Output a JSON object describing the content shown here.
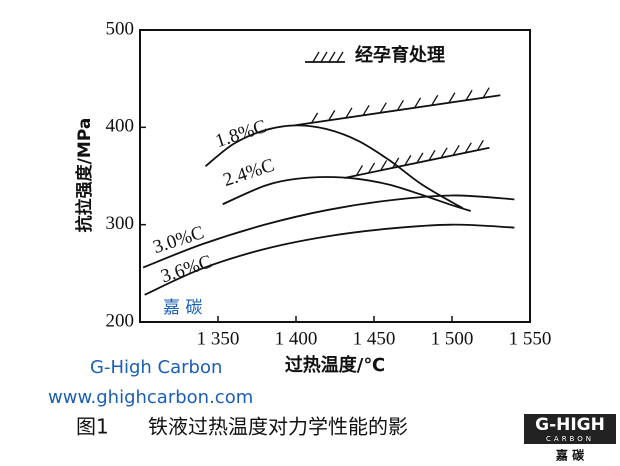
{
  "chart_data": {
    "type": "line",
    "ylabel": "抗拉强度/MPa",
    "xlabel": "过热温度/℃",
    "xlim": [
      1300,
      1550
    ],
    "xticks": [
      {
        "value": 1350,
        "label": "1 350"
      },
      {
        "value": 1400,
        "label": "1 400"
      },
      {
        "value": 1450,
        "label": "1 450"
      },
      {
        "value": 1500,
        "label": "1 500"
      },
      {
        "value": 1550,
        "label": "1 550"
      }
    ],
    "ylim": [
      200,
      500
    ],
    "yticks": [
      200,
      300,
      400,
      500
    ],
    "color": "#111111",
    "series": [
      {
        "name": "1.8%C",
        "x": [
          1342,
          1360,
          1380,
          1400,
          1420,
          1440,
          1460,
          1480,
          1500,
          1507
        ],
        "values": [
          360,
          383,
          397,
          402,
          398,
          386,
          366,
          342,
          323,
          317
        ]
      },
      {
        "name": "2.4%C",
        "x": [
          1353,
          1380,
          1400,
          1420,
          1440,
          1460,
          1480,
          1500,
          1512
        ],
        "values": [
          321,
          340,
          347,
          349,
          347,
          341,
          331,
          320,
          314
        ]
      },
      {
        "name": "3.0%C",
        "x": [
          1302,
          1340,
          1380,
          1420,
          1460,
          1500,
          1540
        ],
        "values": [
          256,
          280,
          300,
          315,
          325,
          330,
          326
        ]
      },
      {
        "name": "3.6%C",
        "x": [
          1303,
          1340,
          1380,
          1420,
          1460,
          1500,
          1540
        ],
        "values": [
          228,
          255,
          275,
          288,
          296,
          300,
          297
        ]
      }
    ],
    "hatch_label": "经孕育处理",
    "hatch_lines": [
      {
        "x": [
          1399,
          1531
        ],
        "values": [
          402,
          433
        ]
      },
      {
        "x": [
          1431,
          1524
        ],
        "values": [
          348,
          379
        ]
      }
    ]
  },
  "watermark": {
    "cn": "嘉 碳",
    "brand": "G-High Carbon",
    "url": "www.ghighcarbon.com"
  },
  "caption": {
    "number": "图1",
    "text": "铁液过热温度对力学性能的影"
  },
  "logo": {
    "top": "G-HIGH",
    "middle": "CARBON",
    "bottom": "嘉 碳"
  }
}
